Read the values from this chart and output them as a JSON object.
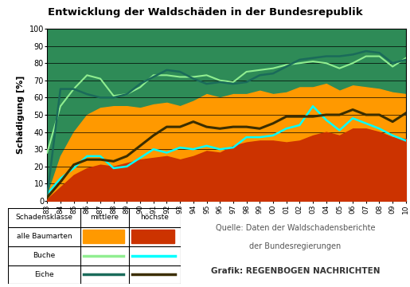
{
  "title": "Entwicklung der Waldschäden in der Bundesrepublik",
  "ylabel": "Schädigung [%]",
  "years": [
    1983,
    1984,
    1985,
    1986,
    1987,
    1988,
    1989,
    1990,
    1991,
    1992,
    1993,
    1994,
    1995,
    1996,
    1997,
    1998,
    1999,
    2000,
    2001,
    2002,
    2003,
    2004,
    2005,
    2006,
    2007,
    2008,
    2009,
    2010
  ],
  "year_labels": [
    "83",
    "84",
    "85",
    "86",
    "87",
    "88",
    "89",
    "90",
    "91",
    "92",
    "93",
    "94",
    "95",
    "96",
    "97",
    "98",
    "99",
    "00",
    "01",
    "02",
    "03",
    "04",
    "05",
    "06",
    "07",
    "08",
    "09",
    "10"
  ],
  "alle_mittle": [
    3,
    26,
    40,
    50,
    54,
    55,
    55,
    54,
    56,
    57,
    55,
    58,
    62,
    60,
    62,
    62,
    64,
    62,
    63,
    66,
    66,
    68,
    64,
    67,
    66,
    65,
    63,
    62
  ],
  "alle_hoechste": [
    1,
    8,
    15,
    19,
    21,
    20,
    22,
    24,
    25,
    26,
    24,
    26,
    29,
    28,
    32,
    34,
    35,
    35,
    34,
    35,
    38,
    40,
    38,
    42,
    42,
    40,
    37,
    36
  ],
  "buche_mittle": [
    28,
    55,
    65,
    73,
    71,
    61,
    62,
    66,
    73,
    73,
    72,
    72,
    73,
    70,
    69,
    75,
    76,
    77,
    79,
    80,
    81,
    80,
    77,
    80,
    84,
    84,
    78,
    83
  ],
  "buche_hoechste": [
    4,
    13,
    19,
    26,
    26,
    19,
    20,
    25,
    30,
    28,
    31,
    30,
    32,
    30,
    31,
    37,
    37,
    38,
    42,
    44,
    55,
    47,
    41,
    48,
    45,
    42,
    38,
    35
  ],
  "eiche_mittle": [
    3,
    65,
    65,
    62,
    60,
    60,
    62,
    68,
    72,
    76,
    75,
    71,
    68,
    69,
    68,
    69,
    73,
    74,
    78,
    82,
    83,
    84,
    84,
    85,
    87,
    86,
    80,
    82
  ],
  "eiche_hoechste": [
    2,
    11,
    21,
    24,
    24,
    23,
    26,
    32,
    38,
    43,
    43,
    46,
    43,
    42,
    43,
    43,
    42,
    45,
    49,
    49,
    49,
    50,
    50,
    53,
    50,
    50,
    46,
    51
  ],
  "color_bg_green": "#2e8b57",
  "color_orange": "#ff9900",
  "color_darkorange": "#cc3300",
  "color_buche_m": "#90ee90",
  "color_buche_h": "#00ffff",
  "color_eiche_m": "#1a6b5a",
  "color_eiche_h": "#3b2e00",
  "source_text1": "Quelle: Daten der Waldschadensberichte",
  "source_text2": "der Bundesregierungen",
  "grafik_text": "Grafik: REGENBOGEN NACHRICHTEN"
}
